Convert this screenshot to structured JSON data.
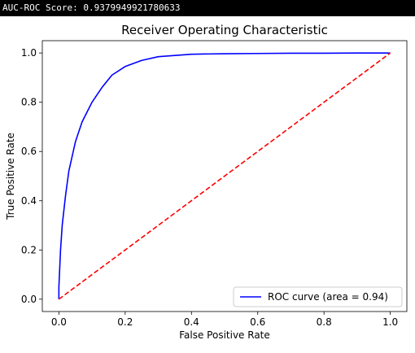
{
  "console": {
    "output": "AUC-ROC Score: 0.9379949921780633"
  },
  "colors": {
    "curve": "#0000ff",
    "diagonal": "#ff0000",
    "axes": "#000000",
    "background": "#ffffff",
    "console_bg": "#000000",
    "console_fg": "#ffffff"
  },
  "chart_data": {
    "type": "line",
    "title": "Receiver Operating Characteristic",
    "xlabel": "False Positive Rate",
    "ylabel": "True Positive Rate",
    "xlim": [
      -0.05,
      1.05
    ],
    "ylim": [
      -0.05,
      1.05
    ],
    "xticks": [
      "0.0",
      "0.2",
      "0.4",
      "0.6",
      "0.8",
      "1.0"
    ],
    "yticks": [
      "0.0",
      "0.2",
      "0.4",
      "0.6",
      "0.8",
      "1.0"
    ],
    "grid": false,
    "legend_position": "lower-right",
    "series": [
      {
        "name": "ROC curve (area = 0.94)",
        "style": "solid",
        "color": "#0000ff",
        "x": [
          0.0,
          0.0,
          0.005,
          0.01,
          0.02,
          0.03,
          0.05,
          0.07,
          0.1,
          0.13,
          0.16,
          0.2,
          0.25,
          0.3,
          0.35,
          0.4,
          0.5,
          0.6,
          0.7,
          0.8,
          0.9,
          1.0
        ],
        "y": [
          0.0,
          0.05,
          0.2,
          0.3,
          0.42,
          0.52,
          0.64,
          0.72,
          0.8,
          0.86,
          0.91,
          0.945,
          0.97,
          0.985,
          0.99,
          0.995,
          0.997,
          0.998,
          0.999,
          0.999,
          1.0,
          1.0
        ]
      },
      {
        "name": "",
        "style": "dashed",
        "color": "#ff0000",
        "x": [
          0.0,
          1.0
        ],
        "y": [
          0.0,
          1.0
        ]
      }
    ]
  }
}
